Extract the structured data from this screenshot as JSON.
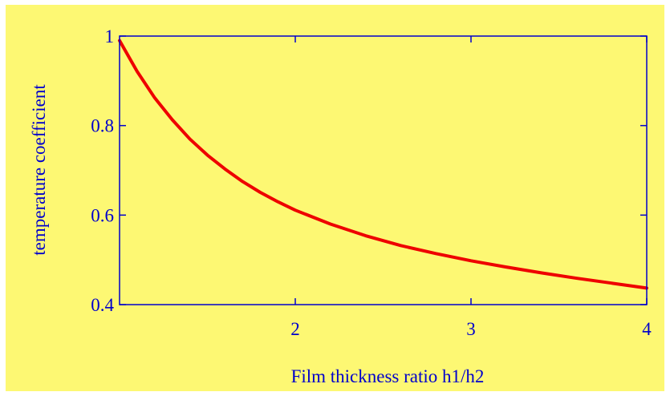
{
  "colors": {
    "page_background": "#ffffff",
    "panel_background": "#fdf873",
    "axis": "#0000cc",
    "curve": "#ee0000"
  },
  "chart_data": {
    "type": "line",
    "title": "",
    "xlabel": "Film thickness ratio h1/h2",
    "ylabel": "temperature coefficient",
    "xlim": [
      1,
      4
    ],
    "ylim": [
      0.4,
      1
    ],
    "x_ticks": [
      2,
      3,
      4
    ],
    "x_tick_labels": [
      "2",
      "3",
      "4"
    ],
    "y_ticks": [
      0.4,
      0.6,
      0.8,
      1
    ],
    "y_tick_labels": [
      "0.4",
      "0.6",
      "0.8",
      "1"
    ],
    "grid": false,
    "series": [
      {
        "x": [
          1.0,
          1.1,
          1.2,
          1.3,
          1.4,
          1.5,
          1.6,
          1.7,
          1.8,
          1.9,
          2.0,
          2.2,
          2.4,
          2.6,
          2.8,
          3.0,
          3.2,
          3.4,
          3.6,
          3.8,
          4.0
        ],
        "y": [
          0.99,
          0.921,
          0.862,
          0.813,
          0.77,
          0.734,
          0.703,
          0.675,
          0.651,
          0.63,
          0.611,
          0.58,
          0.554,
          0.532,
          0.514,
          0.498,
          0.484,
          0.471,
          0.459,
          0.448,
          0.437
        ]
      }
    ]
  }
}
